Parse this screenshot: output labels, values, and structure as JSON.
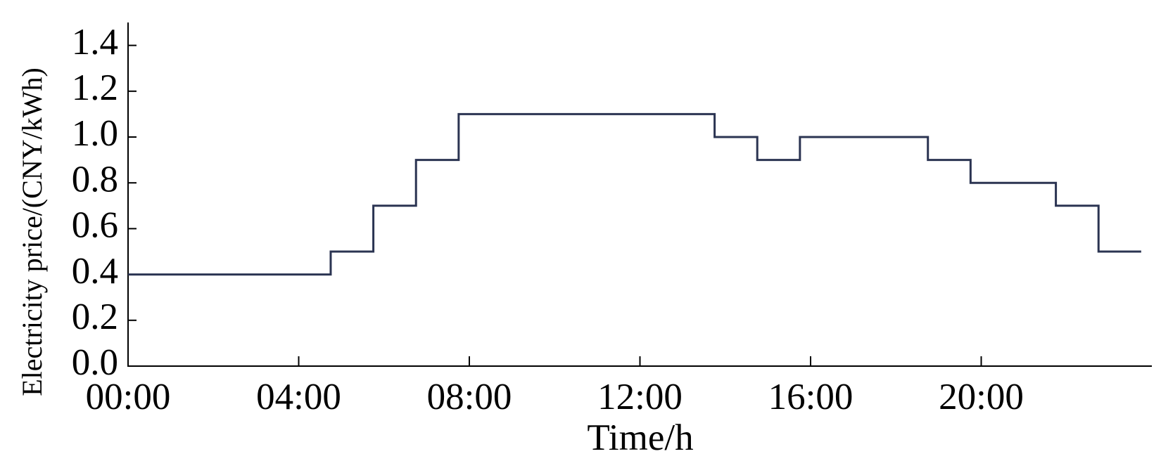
{
  "chart_data": {
    "type": "step",
    "xlabel": "Time/h",
    "ylabel": "Electricity price/(CNY/kWh)",
    "x": [
      0,
      4.75,
      5.75,
      6.75,
      7.75,
      13.75,
      14.75,
      15.75,
      18.75,
      19.75,
      21.75,
      22.75,
      23.75
    ],
    "series": [
      {
        "color": "#2b3452",
        "values": [
          0.4,
          0.5,
          0.7,
          0.9,
          1.1,
          1.0,
          0.9,
          1.0,
          0.9,
          0.8,
          0.7,
          0.5,
          0.5
        ]
      }
    ],
    "xlim": [
      0,
      24
    ],
    "xticks": [
      {
        "value": 0,
        "label": "00:00"
      },
      {
        "value": 4,
        "label": "04:00"
      },
      {
        "value": 8,
        "label": "08:00"
      },
      {
        "value": 12,
        "label": "12:00"
      },
      {
        "value": 16,
        "label": "16:00"
      },
      {
        "value": 20,
        "label": "20:00"
      }
    ],
    "ylim": [
      0,
      1.5
    ],
    "yticks": [
      {
        "value": 0,
        "label": "0.0"
      },
      0.2,
      0.4,
      0.6,
      0.8,
      {
        "value": 1,
        "label": "1.0"
      },
      1.2,
      1.4
    ],
    "grid": false
  }
}
